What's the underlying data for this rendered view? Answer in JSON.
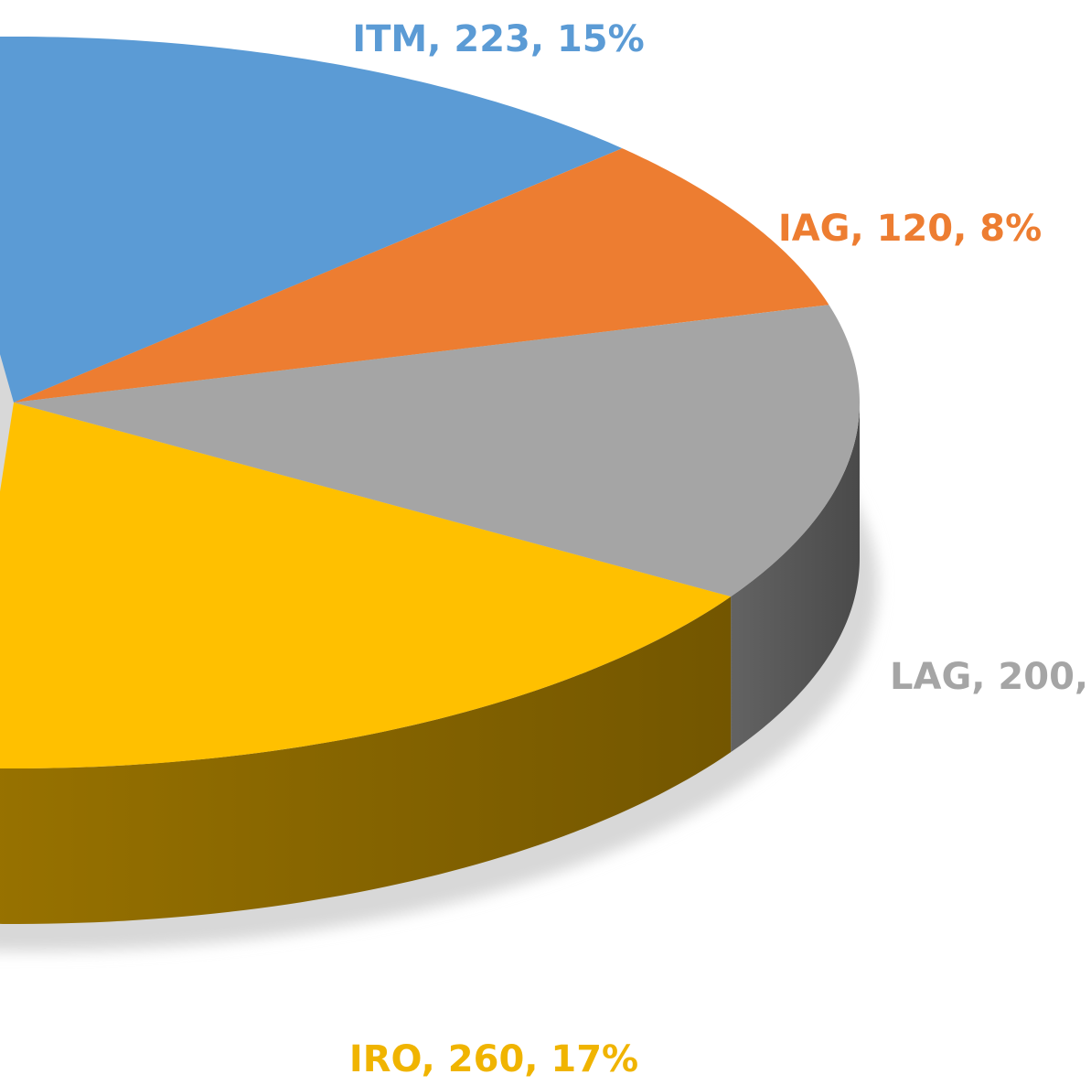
{
  "chart_data": {
    "type": "pie3d",
    "categories": [
      "ITM",
      "IAG",
      "LAG",
      "IRO"
    ],
    "values": [
      223,
      120,
      200,
      260
    ],
    "percents": [
      15,
      8,
      13,
      17
    ],
    "value_labels": [
      "ITM, 223, 15%",
      "IAG, 120, 8%",
      "LAG, 200,",
      "IRO, 260, 17%"
    ],
    "colors": [
      "#5b9bd5",
      "#ed7d31",
      "#a5a5a5",
      "#ffc000"
    ]
  }
}
